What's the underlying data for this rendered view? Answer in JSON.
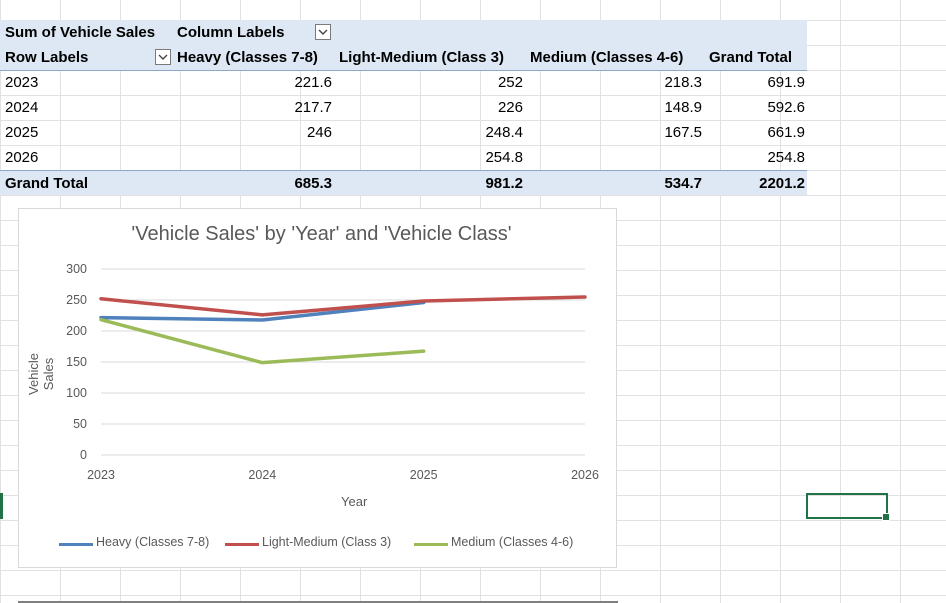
{
  "pivot": {
    "header1": {
      "values_label": "Sum of Vehicle Sales",
      "columns_label": "Column Labels"
    },
    "header2": {
      "row_labels": "Row Labels",
      "col1": "Heavy (Classes 7-8)",
      "col2": "Light-Medium (Class 3)",
      "col3": "Medium (Classes 4-6)",
      "col4": "Grand Total"
    },
    "rows": [
      {
        "label": "2023",
        "heavy": "221.6",
        "light": "252",
        "medium": "218.3",
        "total": "691.9"
      },
      {
        "label": "2024",
        "heavy": "217.7",
        "light": "226",
        "medium": "148.9",
        "total": "592.6"
      },
      {
        "label": "2025",
        "heavy": "246",
        "light": "248.4",
        "medium": "167.5",
        "total": "661.9"
      },
      {
        "label": "2026",
        "heavy": "",
        "light": "254.8",
        "medium": "",
        "total": "254.8"
      }
    ],
    "grand_total": {
      "label": "Grand Total",
      "heavy": "685.3",
      "light": "981.2",
      "medium": "534.7",
      "total": "2201.2"
    }
  },
  "icons": {
    "filter": "chevron-down-icon"
  },
  "colors": {
    "header_fill": "#dde8f4",
    "heavy": "#4f81bd",
    "light": "#c0504d",
    "medium": "#9bbb59",
    "selection": "#217346"
  },
  "chart_data": {
    "type": "line",
    "title": "'Vehicle Sales' by 'Year' and 'Vehicle Class'",
    "xlabel": "Year",
    "ylabel": "Vehicle Sales",
    "categories": [
      "2023",
      "2024",
      "2025",
      "2026"
    ],
    "yticks": [
      "0",
      "50",
      "100",
      "150",
      "200",
      "250",
      "300"
    ],
    "ylim": [
      0,
      300
    ],
    "grid": true,
    "legend_position": "bottom",
    "series": [
      {
        "name": "Heavy (Classes 7-8)",
        "values": [
          221.6,
          217.7,
          246,
          null
        ],
        "color": "#4f81bd"
      },
      {
        "name": "Light-Medium (Class 3)",
        "values": [
          252,
          226,
          248.4,
          254.8
        ],
        "color": "#c0504d"
      },
      {
        "name": "Medium (Classes 4-6)",
        "values": [
          218.3,
          148.9,
          167.5,
          null
        ],
        "color": "#9bbb59"
      }
    ]
  }
}
